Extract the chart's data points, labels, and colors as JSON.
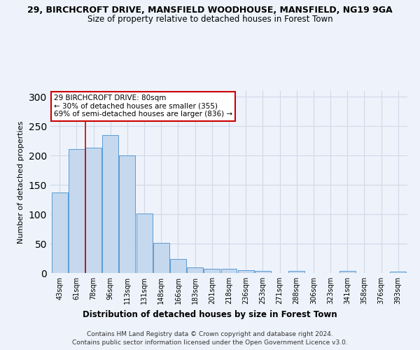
{
  "title_line1": "29, BIRCHCROFT DRIVE, MANSFIELD WOODHOUSE, MANSFIELD, NG19 9GA",
  "title_line2": "Size of property relative to detached houses in Forest Town",
  "xlabel": "Distribution of detached houses by size in Forest Town",
  "ylabel": "Number of detached properties",
  "categories": [
    "43sqm",
    "61sqm",
    "78sqm",
    "96sqm",
    "113sqm",
    "131sqm",
    "148sqm",
    "166sqm",
    "183sqm",
    "201sqm",
    "218sqm",
    "236sqm",
    "253sqm",
    "271sqm",
    "288sqm",
    "306sqm",
    "323sqm",
    "341sqm",
    "358sqm",
    "376sqm",
    "393sqm"
  ],
  "values": [
    137,
    211,
    214,
    235,
    200,
    101,
    51,
    24,
    10,
    7,
    7,
    5,
    3,
    0,
    3,
    0,
    0,
    3,
    0,
    0,
    2
  ],
  "bar_color": "#c5d8ed",
  "bar_edge_color": "#5b9bd5",
  "highlight_index": 2,
  "highlight_line_color": "#cc0000",
  "annotation_text": "29 BIRCHCROFT DRIVE: 80sqm\n← 30% of detached houses are smaller (355)\n69% of semi-detached houses are larger (836) →",
  "annotation_box_color": "#ffffff",
  "annotation_box_edge": "#cc0000",
  "footer_line1": "Contains HM Land Registry data © Crown copyright and database right 2024.",
  "footer_line2": "Contains public sector information licensed under the Open Government Licence v3.0.",
  "ylim": [
    0,
    310
  ],
  "grid_color": "#d0d8e8",
  "background_color": "#eef3fb"
}
